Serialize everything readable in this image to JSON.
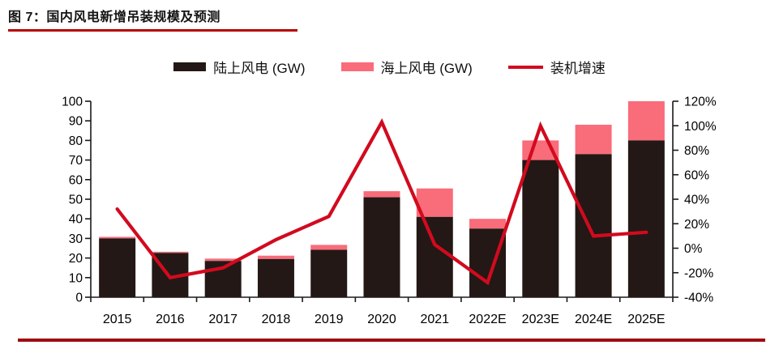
{
  "page": {
    "title": "图 7：国内风电新增吊装规模及预测"
  },
  "legend": {
    "items": [
      {
        "label": "陆上风电 (GW)",
        "swatch": "bar",
        "color": "#231815"
      },
      {
        "label": "海上风电 (GW)",
        "swatch": "bar",
        "color": "#F96C7A"
      },
      {
        "label": "装机增速",
        "swatch": "line",
        "color": "#D20A1E"
      }
    ]
  },
  "chart_data": {
    "type": "bar",
    "subtype": "stacked-column-with-line",
    "title": "国内风电新增吊装规模及预测",
    "categories": [
      "2015",
      "2016",
      "2017",
      "2018",
      "2019",
      "2020",
      "2021",
      "2022E",
      "2023E",
      "2024E",
      "2025E"
    ],
    "series": [
      {
        "name": "陆上风电 (GW)",
        "type": "bar",
        "stack": "gw",
        "color": "#231815",
        "values": [
          30.0,
          22.6,
          18.5,
          19.5,
          24.2,
          51.0,
          41.0,
          35.0,
          70.0,
          73.0,
          80.0
        ]
      },
      {
        "name": "海上风电 (GW)",
        "type": "bar",
        "stack": "gw",
        "color": "#F96C7A",
        "values": [
          0.8,
          0.6,
          1.2,
          1.7,
          2.5,
          3.1,
          14.5,
          5.0,
          10.0,
          15.0,
          20.0
        ]
      },
      {
        "name": "装机增速",
        "type": "line",
        "axis": "right",
        "unit": "%",
        "color": "#D20A1E",
        "values": [
          32,
          -24,
          -16,
          7,
          26,
          103,
          3,
          -28,
          100,
          10,
          13
        ]
      }
    ],
    "left_axis": {
      "min": 0,
      "max": 100,
      "step": 10,
      "tick_labels": [
        "100",
        "90",
        "80",
        "70",
        "60",
        "50",
        "40",
        "30",
        "20",
        "10",
        "0"
      ]
    },
    "right_axis": {
      "min": -40,
      "max": 120,
      "step": 20,
      "tick_labels": [
        "120%",
        "100%",
        "80%",
        "60%",
        "40%",
        "20%",
        "0%",
        "-20%",
        "-40%"
      ]
    },
    "legend_position": "top-center",
    "grid": false
  },
  "colors": {
    "title_underline": "#B80000",
    "bottom_rule": "#9E0B0F",
    "axis": "#1a1a1a",
    "onshore_bar": "#231815",
    "offshore_bar": "#F96C7A",
    "growth_line": "#D20A1E",
    "text": "#000000"
  }
}
